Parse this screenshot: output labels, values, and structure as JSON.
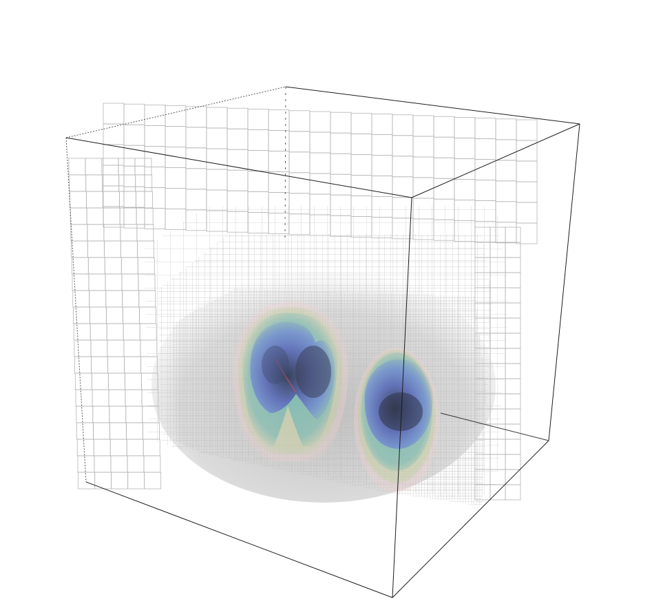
{
  "scene": {
    "background_color": "#ffffff",
    "frame_color": "#1a1a1a",
    "grid_color": "#b4b4b4",
    "dense_mesh_color": "#c2c2c2",
    "blob_colors": [
      "#6f7fd8",
      "#5fb5b8",
      "#a6c98a",
      "#f0c8c8",
      "#3f4560"
    ],
    "blob_count": 2
  }
}
